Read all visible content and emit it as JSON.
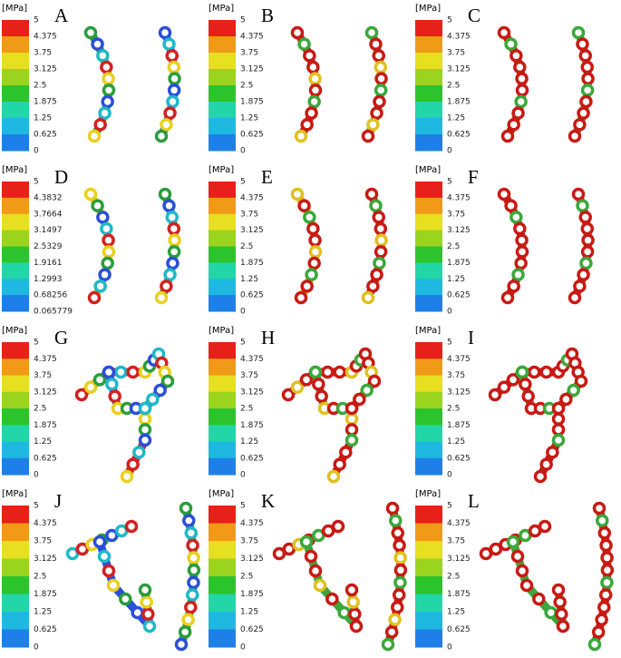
{
  "panels": [
    {
      "label": "A",
      "unit": "[MPa]",
      "scale": [
        "5",
        "4.375",
        "3.75",
        "3.125",
        "2.5",
        "1.875",
        "1.25",
        "0.625",
        "0"
      ]
    },
    {
      "label": "B",
      "unit": "[MPa]",
      "scale": [
        "5",
        "4.375",
        "3.75",
        "3.125",
        "2.5",
        "1.875",
        "1.25",
        "0.625",
        "0"
      ]
    },
    {
      "label": "C",
      "unit": "[MPa]",
      "scale": [
        "5",
        "4.375",
        "3.75",
        "3.125",
        "2.5",
        "1.875",
        "1.25",
        "0.625",
        "0"
      ]
    },
    {
      "label": "D",
      "unit": "[MPa]",
      "scale": [
        "5",
        "4.3832",
        "3.7664",
        "3.1497",
        "2.5329",
        "1.9161",
        "1.2993",
        "0.68256",
        "0.065779"
      ]
    },
    {
      "label": "E",
      "unit": "[MPa]",
      "scale": [
        "5",
        "4.375",
        "3.75",
        "3.125",
        "2.5",
        "1.875",
        "1.25",
        "0.625",
        "0"
      ]
    },
    {
      "label": "F",
      "unit": "[MPa]",
      "scale": [
        "5",
        "4.375",
        "3.75",
        "3.125",
        "2.5",
        "1.875",
        "1.25",
        "0.625",
        "0"
      ]
    },
    {
      "label": "G",
      "unit": "[MPa]",
      "scale": [
        "5",
        "4.375",
        "3.75",
        "3.125",
        "2.5",
        "1.875",
        "1.25",
        "0.625",
        "0"
      ]
    },
    {
      "label": "H",
      "unit": "[MPa]",
      "scale": [
        "5",
        "4.375",
        "3.75",
        "3.125",
        "2.5",
        "1.875",
        "1.25",
        "0.625",
        "0"
      ]
    },
    {
      "label": "I",
      "unit": "[MPa]",
      "scale": [
        "5",
        "4.375",
        "3.75",
        "3.125",
        "2.5",
        "1.875",
        "1.25",
        "0.625",
        "0"
      ]
    },
    {
      "label": "J",
      "unit": "[MPa]",
      "scale": [
        "5",
        "4.375",
        "3.75",
        "3.125",
        "2.5",
        "1.875",
        "1.25",
        "0.625",
        "0"
      ]
    },
    {
      "label": "K",
      "unit": "[MPa]",
      "scale": [
        "5",
        "4.375",
        "3.75",
        "3.125",
        "2.5",
        "1.875",
        "1.25",
        "0.625",
        "0"
      ]
    },
    {
      "label": "L",
      "unit": "[MPa]",
      "scale": [
        "5",
        "4.375",
        "3.75",
        "3.125",
        "2.5",
        "1.875",
        "1.25",
        "0.625",
        "0"
      ]
    }
  ]
}
